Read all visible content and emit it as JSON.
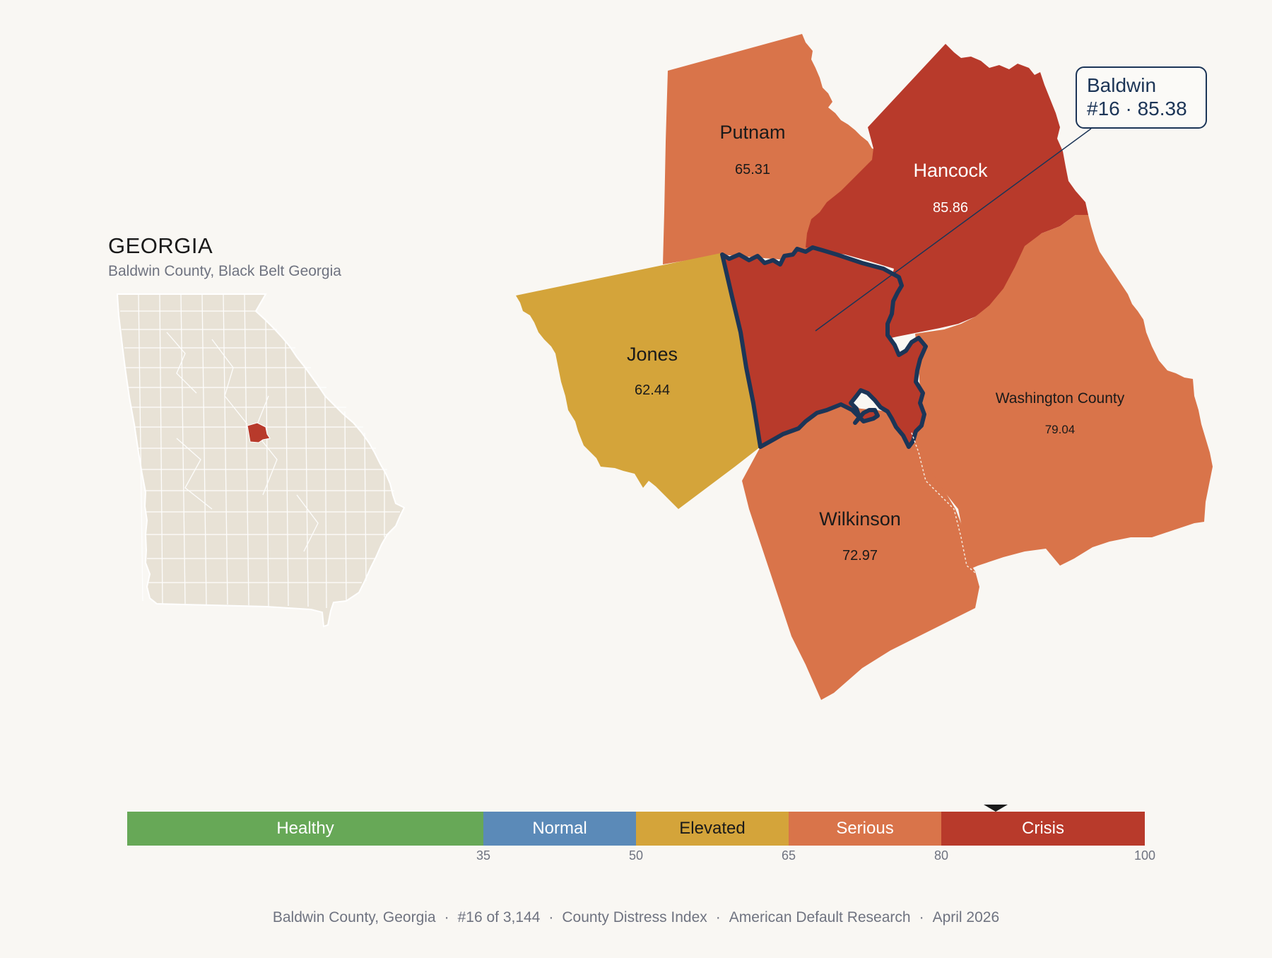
{
  "inset": {
    "title": "GEORGIA",
    "subtitle": "Baldwin County, Black Belt Georgia"
  },
  "callout": {
    "name": "Baldwin",
    "detail": "#16 · 85.38"
  },
  "counties": [
    {
      "name": "Putnam",
      "score": "65.31",
      "fill": "#d9744a",
      "text_color": "#1a1a1a"
    },
    {
      "name": "Hancock",
      "score": "85.86",
      "fill": "#b83a2b",
      "text_color": "#ffffff"
    },
    {
      "name": "Jones",
      "score": "62.44",
      "fill": "#d4a43a",
      "text_color": "#1a1a1a"
    },
    {
      "name": "Washington County",
      "score": "79.04",
      "fill": "#d9744a",
      "text_color": "#1a1a1a"
    },
    {
      "name": "Wilkinson",
      "score": "72.97",
      "fill": "#d9744a",
      "text_color": "#1a1a1a"
    }
  ],
  "focus_county": {
    "fill": "#b83a2b",
    "outline": "#1c3557"
  },
  "legend": {
    "range": [
      0,
      100
    ],
    "marker_value": 85.38,
    "bands": [
      {
        "label": "Healthy",
        "from": 0,
        "to": 35,
        "color": "#67a857",
        "text_color": "#ffffff"
      },
      {
        "label": "Normal",
        "from": 35,
        "to": 50,
        "color": "#5b8ab8",
        "text_color": "#ffffff"
      },
      {
        "label": "Elevated",
        "from": 50,
        "to": 65,
        "color": "#d4a43a",
        "text_color": "#1a1a1a"
      },
      {
        "label": "Serious",
        "from": 65,
        "to": 80,
        "color": "#d9744a",
        "text_color": "#ffffff"
      },
      {
        "label": "Crisis",
        "from": 80,
        "to": 100,
        "color": "#b83a2b",
        "text_color": "#ffffff"
      }
    ],
    "ticks": [
      "35",
      "50",
      "65",
      "80",
      "100"
    ]
  },
  "footer": {
    "parts": [
      "Baldwin County, Georgia",
      "#16 of 3,144",
      "County Distress Index",
      "American Default Research",
      "April 2026"
    ]
  },
  "colors": {
    "background": "#f9f7f3",
    "inset_fill": "#e8e2d6",
    "inset_highlight": "#b83a2b"
  }
}
